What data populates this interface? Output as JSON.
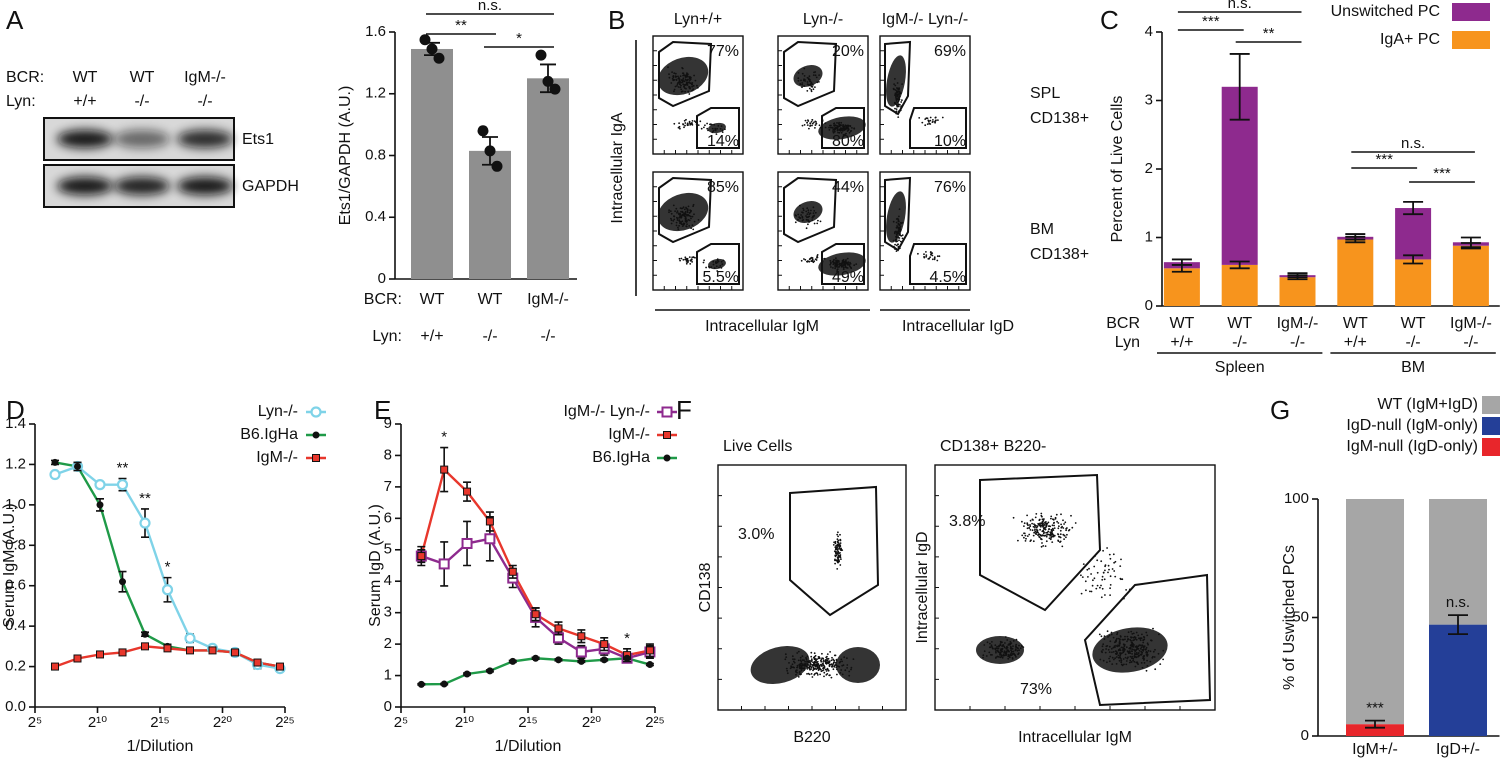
{
  "panel_letters": [
    "A",
    "B",
    "C",
    "D",
    "E",
    "F",
    "G"
  ],
  "blot": {
    "rows": [
      {
        "label": "BCR:",
        "labels": [
          "WT",
          "WT",
          "IgM-/-"
        ]
      },
      {
        "label": "Lyn:",
        "labels": [
          "+/+",
          "-/-",
          "-/-"
        ]
      }
    ],
    "bands": [
      "Ets1",
      "GAPDH"
    ]
  },
  "flow_b": {
    "columns": [
      "Lyn+/+",
      "Lyn-/-",
      "IgM-/- Lyn-/-"
    ],
    "y_label": "Intracellular IgA",
    "x_labels": [
      "Intracellular IgM",
      "Intracellular IgD"
    ],
    "rows": [
      {
        "label": [
          "SPL",
          "CD138+"
        ],
        "gates": [
          [
            "77%",
            "14%"
          ],
          [
            "20%",
            "80%"
          ],
          [
            "69%",
            "10%"
          ]
        ]
      },
      {
        "label": [
          "BM",
          "CD138+"
        ],
        "gates": [
          [
            "85%",
            "5.5%"
          ],
          [
            "44%",
            "49%"
          ],
          [
            "76%",
            "4.5%"
          ]
        ]
      }
    ]
  },
  "flow_f": {
    "plots": [
      {
        "title": "Live Cells",
        "y_label": "CD138",
        "x_label": "B220",
        "gates": [
          "3.0%"
        ]
      },
      {
        "title": "CD138+ B220-",
        "y_label": "Intracellular IgD",
        "x_label": "Intracellular IgM",
        "gates": [
          "3.8%",
          "73%"
        ]
      }
    ]
  },
  "chart_data": [
    {
      "type": "bar",
      "ylabel": "Ets1/GAPDH (A.U.)",
      "category_rows": [
        {
          "label": "BCR:",
          "labels": [
            "WT",
            "WT",
            "IgM-/-"
          ]
        },
        {
          "label": "Lyn:",
          "labels": [
            "+/+",
            "-/-",
            "-/-"
          ]
        }
      ],
      "values": [
        1.49,
        0.83,
        1.3
      ],
      "errors": [
        0.04,
        0.09,
        0.09
      ],
      "points": [
        [
          1.55,
          1.43,
          1.49
        ],
        [
          0.96,
          0.73,
          0.83
        ],
        [
          1.45,
          1.23,
          1.28
        ]
      ],
      "color": "#8f8f8f",
      "ylim": [
        0,
        1.6
      ],
      "yticks": [
        0,
        0.4,
        0.8,
        1.2,
        1.6
      ],
      "annotations": [
        "n.s.",
        "**",
        "*"
      ]
    },
    {
      "type": "stacked_bar",
      "ylabel": "Percent of Live Cells",
      "category_rows": [
        {
          "label": "BCR",
          "labels": [
            "WT",
            "WT",
            "IgM-/-",
            "WT",
            "WT",
            "IgM-/-"
          ]
        },
        {
          "label": "Lyn",
          "labels": [
            "+/+",
            "-/-",
            "-/-",
            "+/+",
            "-/-",
            "-/-"
          ]
        }
      ],
      "groups": [
        "Spleen",
        "BM"
      ],
      "series": [
        {
          "name": "IgA+ PC",
          "color": "#f7941d",
          "values": [
            0.55,
            0.6,
            0.42,
            0.97,
            0.68,
            0.88
          ],
          "errors": [
            0.05,
            0.05,
            0.03,
            0.04,
            0.06,
            0.04
          ]
        },
        {
          "name": "Unswitched PC",
          "color": "#8e2a8e",
          "values": [
            0.09,
            2.6,
            0.03,
            0.04,
            0.75,
            0.05
          ],
          "errors": [
            0.04,
            0.48,
            0.03,
            0.04,
            0.09,
            0.07
          ]
        }
      ],
      "ylim": [
        0,
        4
      ],
      "yticks": [
        0,
        1,
        2,
        3,
        4
      ],
      "annotations": [
        "n.s.",
        "***",
        "**",
        "n.s.",
        "***",
        "***"
      ]
    },
    {
      "type": "line",
      "ylabel": "Serum IgM (A.U.)",
      "xlabel": "1/Dilution",
      "x": [
        6.6,
        8.4,
        10.2,
        12.0,
        13.8,
        15.6,
        17.4,
        19.2,
        21.0,
        22.8,
        24.6
      ],
      "series": [
        {
          "name": "Lyn-/-",
          "color": "#7fd3e8",
          "marker": "open-circle",
          "values": [
            1.15,
            1.19,
            1.1,
            1.1,
            0.91,
            0.58,
            0.34,
            0.29,
            0.27,
            0.21,
            0.19
          ],
          "errors": [
            0.01,
            0.02,
            0.01,
            0.03,
            0.07,
            0.06,
            0.02,
            0.01,
            0.01,
            0.02,
            0.01
          ]
        },
        {
          "name": "B6.IgHa",
          "color": "#1f9a48",
          "marker": "dot",
          "values": [
            1.21,
            1.19,
            1.0,
            0.62,
            0.36,
            0.3,
            0.28,
            0.28,
            0.27,
            0.22,
            0.2
          ],
          "errors": [
            0.01,
            0.02,
            0.03,
            0.05,
            0.01,
            0.01,
            0.01,
            0.01,
            0.01,
            0.01,
            0.01
          ]
        },
        {
          "name": "IgM-/-",
          "color": "#e8372c",
          "marker": "square",
          "values": [
            0.2,
            0.24,
            0.26,
            0.27,
            0.3,
            0.29,
            0.28,
            0.28,
            0.27,
            0.22,
            0.2
          ],
          "errors": [
            0.01,
            0.01,
            0.01,
            0.01,
            0.01,
            0.01,
            0.01,
            0.01,
            0.01,
            0.01,
            0.01
          ]
        }
      ],
      "xlim": [
        5,
        25
      ],
      "xticks": [
        {
          "value": 5,
          "label": "2⁵"
        },
        {
          "value": 10,
          "label": "2¹⁰"
        },
        {
          "value": 15,
          "label": "2¹⁵"
        },
        {
          "value": 20,
          "label": "2²⁰"
        },
        {
          "value": 25,
          "label": "2²⁵"
        }
      ],
      "ylim": [
        0,
        1.4
      ],
      "yticks": [
        {
          "value": 0,
          "label": "0.0"
        },
        0.2,
        0.4,
        0.6,
        0.8,
        {
          "value": 1,
          "label": "1.0"
        },
        1.2,
        1.4
      ],
      "annotations": [
        "**",
        "**",
        "*"
      ]
    },
    {
      "type": "line",
      "ylabel": "Serum IgD (A.U.)",
      "xlabel": "1/Dilution",
      "x": [
        6.6,
        8.4,
        10.2,
        12.0,
        13.8,
        15.6,
        17.4,
        19.2,
        21.0,
        22.8,
        24.6
      ],
      "series": [
        {
          "name": "IgM-/- Lyn-/-",
          "color": "#8e2a8e",
          "marker": "open-square",
          "values": [
            4.8,
            4.55,
            5.2,
            5.35,
            4.1,
            2.85,
            2.2,
            1.75,
            1.85,
            1.55,
            1.75
          ],
          "errors": [
            0.3,
            0.7,
            0.7,
            0.7,
            0.3,
            0.3,
            0.2,
            0.2,
            0.2,
            0.1,
            0.2
          ]
        },
        {
          "name": "IgM-/-",
          "color": "#e8372c",
          "marker": "square",
          "values": [
            4.8,
            7.55,
            6.85,
            5.9,
            4.3,
            2.95,
            2.5,
            2.25,
            2.0,
            1.65,
            1.8
          ],
          "errors": [
            0.2,
            0.7,
            0.3,
            0.3,
            0.2,
            0.2,
            0.2,
            0.2,
            0.2,
            0.2,
            0.2
          ]
        },
        {
          "name": "B6.IgHa",
          "color": "#1f9a48",
          "marker": "dot",
          "values": [
            0.72,
            0.73,
            1.05,
            1.15,
            1.45,
            1.55,
            1.5,
            1.45,
            1.5,
            1.55,
            1.35
          ],
          "errors": [
            0.02,
            0.02,
            0.03,
            0.03,
            0.03,
            0.03,
            0.03,
            0.03,
            0.03,
            0.03,
            0.03
          ]
        }
      ],
      "xlim": [
        5,
        25
      ],
      "xticks": [
        {
          "value": 5,
          "label": "2⁵"
        },
        {
          "value": 10,
          "label": "2¹⁰"
        },
        {
          "value": 15,
          "label": "2¹⁵"
        },
        {
          "value": 20,
          "label": "2²⁰"
        },
        {
          "value": 25,
          "label": "2²⁵"
        }
      ],
      "ylim": [
        0,
        9
      ],
      "yticks": [
        0,
        1,
        2,
        3,
        4,
        5,
        6,
        7,
        8,
        9
      ],
      "annotations": [
        "*",
        "*"
      ]
    },
    {
      "type": "stacked_bar",
      "ylabel": "% of Uswitched PCs",
      "category_rows": [
        {
          "labels": [
            "IgM+/-",
            "IgD+/-"
          ]
        }
      ],
      "series": [
        {
          "name": "IgM-null (IgD-only)",
          "color": "#e8262b",
          "values": [
            5,
            0
          ],
          "errors": [
            1.5,
            null
          ]
        },
        {
          "name": "IgD-null (IgM-only)",
          "color": "#243f98",
          "values": [
            0,
            47
          ],
          "errors": [
            null,
            4
          ]
        },
        {
          "name": "WT (IgM+IgD)",
          "color": "#a6a6a6",
          "values": [
            95,
            53
          ],
          "errors": [
            null,
            null
          ]
        }
      ],
      "ylim": [
        0,
        100
      ],
      "yticks": [
        0,
        50,
        100
      ],
      "annotations": [
        "***",
        "n.s."
      ]
    }
  ]
}
